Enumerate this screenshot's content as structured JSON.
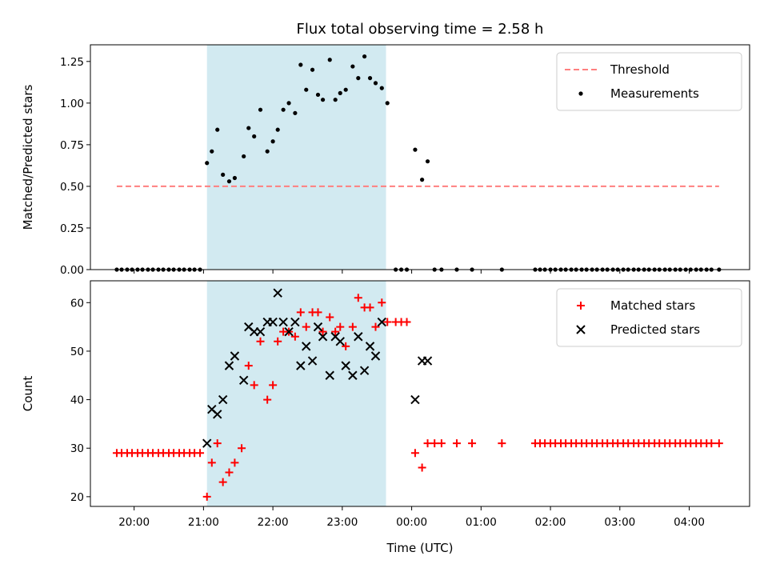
{
  "chart_data": {
    "title": "Flux total observing time = 2.58 h",
    "xlabel": "Time (UTC)",
    "x_ticks": [
      "20:00",
      "21:00",
      "22:00",
      "23:00",
      "00:00",
      "01:00",
      "02:00",
      "03:00",
      "04:00"
    ],
    "x_ticks_hours": [
      20,
      21,
      22,
      23,
      24,
      25,
      26,
      27,
      28
    ],
    "xlim_hours": [
      19.37,
      28.87
    ],
    "shaded_span_hours": [
      21.05,
      23.63
    ],
    "shaded_color": "#add8e6",
    "panels": [
      {
        "type": "scatter",
        "ylabel": "Matched/Predicted stars",
        "ylim": [
          0,
          1.35
        ],
        "y_ticks": [
          0.0,
          0.25,
          0.5,
          0.75,
          1.0,
          1.25
        ],
        "y_tick_labels": [
          "0.00",
          "0.25",
          "0.50",
          "0.75",
          "1.00",
          "1.25"
        ],
        "legend": "top-right",
        "threshold": {
          "name": "Threshold",
          "value": 0.5,
          "x_range_hours": [
            19.75,
            28.43
          ],
          "color": "#ff7f7f"
        },
        "series": [
          {
            "name": "Measurements",
            "color": "#000000",
            "x_hours": [
              19.75,
              19.82,
              19.9,
              19.97,
              20.05,
              20.12,
              20.2,
              20.27,
              20.35,
              20.42,
              20.5,
              20.57,
              20.65,
              20.72,
              20.8,
              20.87,
              20.95,
              21.05,
              21.12,
              21.2,
              21.28,
              21.37,
              21.45,
              21.58,
              21.65,
              21.73,
              21.82,
              21.92,
              22.0,
              22.07,
              22.15,
              22.23,
              22.32,
              22.4,
              22.48,
              22.57,
              22.65,
              22.72,
              22.82,
              22.9,
              22.97,
              23.05,
              23.15,
              23.23,
              23.32,
              23.4,
              23.48,
              23.57,
              23.65,
              23.77,
              23.85,
              23.93,
              24.05,
              24.15,
              24.23,
              24.33,
              24.43,
              24.65,
              24.87,
              25.3,
              25.78,
              25.85,
              25.92,
              26.0,
              26.07,
              26.15,
              26.22,
              26.3,
              26.37,
              26.45,
              26.52,
              26.6,
              26.67,
              26.75,
              26.82,
              26.9,
              26.97,
              27.05,
              27.12,
              27.2,
              27.27,
              27.35,
              27.42,
              27.5,
              27.57,
              27.65,
              27.72,
              27.8,
              27.87,
              27.95,
              28.02,
              28.1,
              28.17,
              28.25,
              28.32,
              28.43
            ],
            "y": [
              0,
              0,
              0,
              0,
              0,
              0,
              0,
              0,
              0,
              0,
              0,
              0,
              0,
              0,
              0,
              0,
              0,
              0.64,
              0.71,
              0.84,
              0.57,
              0.53,
              0.55,
              0.68,
              0.85,
              0.8,
              0.96,
              0.71,
              0.77,
              0.84,
              0.96,
              1.0,
              0.94,
              1.23,
              1.08,
              1.2,
              1.05,
              1.02,
              1.26,
              1.02,
              1.06,
              1.08,
              1.22,
              1.15,
              1.28,
              1.15,
              1.12,
              1.09,
              1.0,
              0,
              0,
              0,
              0.72,
              0.54,
              0.65,
              0,
              0,
              0,
              0,
              0,
              0,
              0,
              0,
              0,
              0,
              0,
              0,
              0,
              0,
              0,
              0,
              0,
              0,
              0,
              0,
              0,
              0,
              0,
              0,
              0,
              0,
              0,
              0,
              0,
              0,
              0,
              0,
              0,
              0,
              0,
              0,
              0,
              0,
              0,
              0,
              0
            ]
          }
        ]
      },
      {
        "type": "scatter",
        "ylabel": "Count",
        "ylim": [
          18,
          64.5
        ],
        "y_ticks": [
          20,
          30,
          40,
          50,
          60
        ],
        "y_tick_labels": [
          "20",
          "30",
          "40",
          "50",
          "60"
        ],
        "legend": "top-right",
        "series": [
          {
            "name": "Matched stars",
            "marker": "plus",
            "color": "#ff0000",
            "x_hours": [
              19.75,
              19.82,
              19.9,
              19.97,
              20.05,
              20.12,
              20.2,
              20.27,
              20.35,
              20.42,
              20.5,
              20.57,
              20.65,
              20.72,
              20.8,
              20.87,
              20.95,
              21.05,
              21.12,
              21.2,
              21.28,
              21.37,
              21.45,
              21.55,
              21.65,
              21.73,
              21.82,
              21.92,
              22.0,
              22.07,
              22.15,
              22.23,
              22.32,
              22.4,
              22.48,
              22.57,
              22.65,
              22.72,
              22.82,
              22.9,
              22.97,
              23.05,
              23.15,
              23.23,
              23.32,
              23.4,
              23.48,
              23.57,
              23.65,
              23.77,
              23.85,
              23.93,
              24.05,
              24.15,
              24.23,
              24.33,
              24.43,
              24.65,
              24.87,
              25.3,
              25.78,
              25.85,
              25.92,
              26.0,
              26.07,
              26.15,
              26.22,
              26.3,
              26.37,
              26.45,
              26.52,
              26.6,
              26.67,
              26.75,
              26.82,
              26.9,
              26.97,
              27.05,
              27.12,
              27.2,
              27.27,
              27.35,
              27.42,
              27.5,
              27.57,
              27.65,
              27.72,
              27.8,
              27.87,
              27.95,
              28.02,
              28.1,
              28.17,
              28.25,
              28.32,
              28.43
            ],
            "y": [
              29,
              29,
              29,
              29,
              29,
              29,
              29,
              29,
              29,
              29,
              29,
              29,
              29,
              29,
              29,
              29,
              29,
              20,
              27,
              31,
              23,
              25,
              27,
              30,
              47,
              43,
              52,
              40,
              43,
              52,
              54,
              54,
              53,
              58,
              55,
              58,
              58,
              54,
              57,
              54,
              55,
              51,
              55,
              61,
              59,
              59,
              55,
              60,
              56,
              56,
              56,
              56,
              29,
              26,
              31,
              31,
              31,
              31,
              31,
              31,
              31,
              31,
              31,
              31,
              31,
              31,
              31,
              31,
              31,
              31,
              31,
              31,
              31,
              31,
              31,
              31,
              31,
              31,
              31,
              31,
              31,
              31,
              31,
              31,
              31,
              31,
              31,
              31,
              31,
              31,
              31,
              31,
              31,
              31,
              31,
              31
            ]
          },
          {
            "name": "Predicted stars",
            "marker": "x",
            "color": "#000000",
            "x_hours": [
              21.05,
              21.12,
              21.2,
              21.28,
              21.37,
              21.45,
              21.58,
              21.65,
              21.73,
              21.82,
              21.92,
              22.0,
              22.07,
              22.15,
              22.23,
              22.32,
              22.4,
              22.48,
              22.57,
              22.65,
              22.72,
              22.82,
              22.9,
              22.97,
              23.05,
              23.15,
              23.23,
              23.32,
              23.4,
              23.48,
              23.57,
              24.05,
              24.15,
              24.23
            ],
            "y": [
              31,
              38,
              37,
              40,
              47,
              49,
              44,
              55,
              54,
              54,
              56,
              56,
              62,
              56,
              54,
              56,
              47,
              51,
              48,
              55,
              53,
              45,
              53,
              52,
              47,
              45,
              53,
              46,
              51,
              49,
              56,
              40,
              48,
              48
            ]
          }
        ]
      }
    ]
  }
}
